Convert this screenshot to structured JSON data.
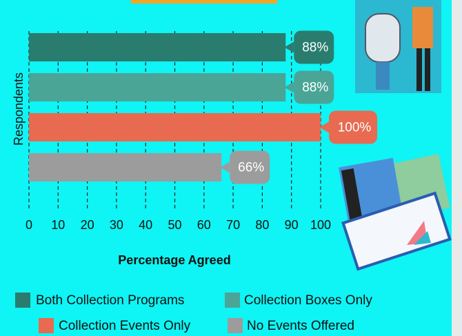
{
  "chart_data": {
    "type": "bar",
    "orientation": "horizontal",
    "categories": [
      "Both Collection Programs",
      "Collection Boxes Only",
      "Collection Events Only",
      "No Events Offered"
    ],
    "values": [
      88,
      88,
      100,
      66
    ],
    "value_labels": [
      "88%",
      "88%",
      "100%",
      "66%"
    ],
    "colors": [
      "#2a7d6e",
      "#4aa597",
      "#e86a50",
      "#9c9c9c"
    ],
    "xlabel": "Percentage Agreed",
    "ylabel": "Respondents",
    "xlim": [
      0,
      100
    ],
    "xticks": [
      0,
      10,
      20,
      30,
      40,
      50,
      60,
      70,
      80,
      90,
      100
    ],
    "grid": true
  }
}
